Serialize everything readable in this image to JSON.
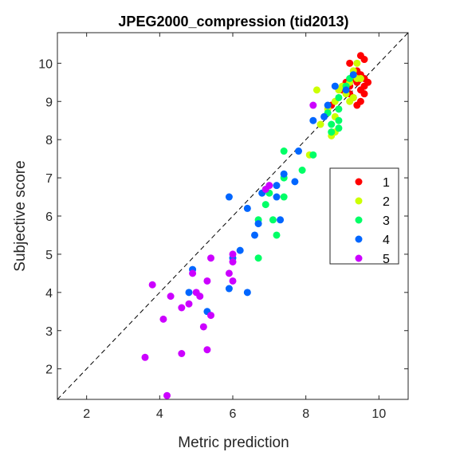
{
  "chart_data": {
    "type": "scatter",
    "title": "JPEG2000_compression (tid2013)",
    "xlabel": "Metric prediction",
    "ylabel": "Subjective score",
    "xlim": [
      1.2,
      10.8
    ],
    "ylim": [
      1.2,
      10.8
    ],
    "xticks": [
      2,
      4,
      6,
      8,
      10
    ],
    "yticks": [
      2,
      3,
      4,
      5,
      6,
      7,
      8,
      9,
      10
    ],
    "grid": false,
    "legend_position": "right",
    "reference_line": {
      "style": "dashed",
      "color": "#000000",
      "from": [
        1.2,
        1.2
      ],
      "to": [
        10.8,
        10.8
      ]
    },
    "series": [
      {
        "name": "1",
        "color": "#ff0000",
        "points": [
          [
            9.5,
            10.2
          ],
          [
            9.6,
            10.1
          ],
          [
            9.2,
            10.0
          ],
          [
            9.4,
            9.8
          ],
          [
            9.5,
            9.7
          ],
          [
            9.3,
            9.6
          ],
          [
            9.6,
            9.6
          ],
          [
            9.1,
            9.5
          ],
          [
            9.4,
            9.5
          ],
          [
            9.7,
            9.5
          ],
          [
            9.2,
            9.4
          ],
          [
            9.5,
            9.3
          ],
          [
            9.6,
            9.2
          ],
          [
            9.3,
            9.1
          ],
          [
            9.5,
            9.0
          ],
          [
            9.4,
            8.9
          ],
          [
            8.7,
            8.9
          ],
          [
            9.6,
            9.4
          ],
          [
            9.0,
            9.3
          ],
          [
            9.2,
            9.2
          ]
        ]
      },
      {
        "name": "2",
        "color": "#ccff00",
        "points": [
          [
            9.4,
            10.0
          ],
          [
            9.3,
            9.8
          ],
          [
            9.5,
            9.6
          ],
          [
            9.2,
            9.5
          ],
          [
            9.0,
            9.4
          ],
          [
            8.9,
            9.3
          ],
          [
            8.3,
            9.3
          ],
          [
            9.1,
            9.2
          ],
          [
            9.3,
            9.1
          ],
          [
            8.8,
            9.0
          ],
          [
            9.2,
            9.0
          ],
          [
            8.6,
            8.8
          ],
          [
            8.8,
            8.6
          ],
          [
            8.4,
            8.4
          ],
          [
            8.8,
            8.2
          ],
          [
            8.7,
            8.1
          ],
          [
            8.1,
            7.6
          ],
          [
            9.4,
            9.6
          ]
        ]
      },
      {
        "name": "3",
        "color": "#00ff66",
        "points": [
          [
            9.2,
            9.6
          ],
          [
            9.1,
            9.4
          ],
          [
            8.9,
            9.1
          ],
          [
            8.9,
            8.8
          ],
          [
            8.6,
            8.7
          ],
          [
            8.9,
            8.5
          ],
          [
            8.7,
            8.4
          ],
          [
            8.9,
            8.3
          ],
          [
            8.7,
            8.2
          ],
          [
            7.4,
            7.7
          ],
          [
            7.9,
            7.2
          ],
          [
            7.4,
            7.0
          ],
          [
            7.0,
            6.6
          ],
          [
            7.4,
            6.5
          ],
          [
            6.9,
            6.3
          ],
          [
            6.7,
            5.9
          ],
          [
            7.1,
            5.9
          ],
          [
            7.2,
            5.5
          ],
          [
            6.7,
            4.9
          ],
          [
            8.2,
            7.6
          ]
        ]
      },
      {
        "name": "4",
        "color": "#0066ff",
        "points": [
          [
            9.3,
            9.7
          ],
          [
            9.1,
            9.3
          ],
          [
            8.8,
            9.4
          ],
          [
            8.6,
            8.9
          ],
          [
            8.5,
            8.6
          ],
          [
            8.2,
            8.5
          ],
          [
            7.8,
            7.7
          ],
          [
            7.4,
            7.1
          ],
          [
            7.7,
            6.9
          ],
          [
            7.2,
            6.8
          ],
          [
            6.8,
            6.6
          ],
          [
            7.2,
            6.5
          ],
          [
            5.9,
            6.5
          ],
          [
            6.4,
            6.2
          ],
          [
            7.3,
            5.9
          ],
          [
            6.7,
            5.8
          ],
          [
            6.6,
            5.5
          ],
          [
            6.2,
            5.1
          ],
          [
            6.0,
            4.9
          ],
          [
            4.9,
            4.6
          ],
          [
            5.9,
            4.1
          ],
          [
            6.4,
            4.0
          ],
          [
            4.8,
            4.0
          ],
          [
            5.3,
            3.5
          ]
        ]
      },
      {
        "name": "5",
        "color": "#cc00ff",
        "points": [
          [
            8.2,
            8.9
          ],
          [
            7.0,
            6.8
          ],
          [
            6.9,
            6.7
          ],
          [
            6.0,
            5.0
          ],
          [
            5.4,
            4.9
          ],
          [
            6.0,
            4.8
          ],
          [
            4.9,
            4.5
          ],
          [
            5.3,
            4.3
          ],
          [
            3.8,
            4.2
          ],
          [
            6.0,
            4.3
          ],
          [
            5.0,
            4.0
          ],
          [
            5.1,
            3.9
          ],
          [
            4.3,
            3.9
          ],
          [
            4.8,
            3.7
          ],
          [
            4.6,
            3.6
          ],
          [
            5.4,
            3.4
          ],
          [
            4.1,
            3.3
          ],
          [
            5.2,
            3.1
          ],
          [
            4.6,
            2.4
          ],
          [
            5.3,
            2.5
          ],
          [
            3.6,
            2.3
          ],
          [
            4.2,
            1.3
          ],
          [
            5.9,
            4.5
          ]
        ]
      }
    ]
  }
}
